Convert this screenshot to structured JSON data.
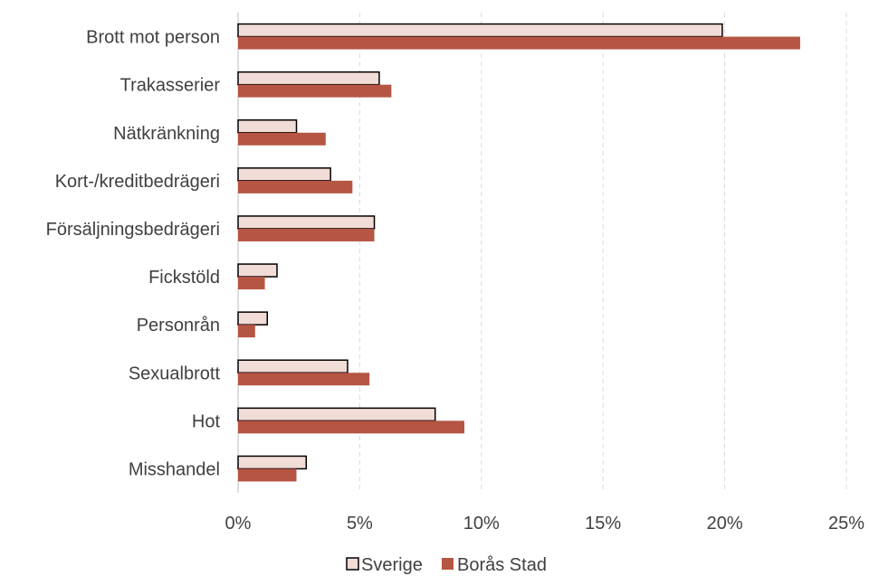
{
  "chart_data": {
    "type": "bar",
    "orientation": "horizontal",
    "categories": [
      "Brott mot person",
      "Trakasserier",
      "Nätkränkning",
      "Kort-/kreditbedrägeri",
      "Försäljningsbedrägeri",
      "Fickstöld",
      "Personrån",
      "Sexualbrott",
      "Hot",
      "Misshandel"
    ],
    "series": [
      {
        "name": "Sverige",
        "values": [
          19.9,
          5.8,
          2.4,
          3.8,
          5.6,
          1.6,
          1.2,
          4.5,
          8.1,
          2.8
        ]
      },
      {
        "name": "Borås Stad",
        "values": [
          23.1,
          6.3,
          3.6,
          4.7,
          5.6,
          1.1,
          0.7,
          5.4,
          9.3,
          2.4
        ]
      }
    ],
    "xlim": [
      0,
      25
    ],
    "x_ticks": [
      0,
      5,
      10,
      15,
      20,
      25
    ],
    "x_tick_labels": [
      "0%",
      "5%",
      "10%",
      "15%",
      "20%",
      "25%"
    ],
    "grid": "vertical dashed",
    "legend_position": "bottom-center",
    "colors": {
      "sverige_fill": "#f2dcd7",
      "sverige_stroke": "#000000",
      "boras_fill": "#b55543",
      "grid": "#d9d9d9",
      "axis": "#bfbfbf",
      "text": "#404040"
    }
  }
}
